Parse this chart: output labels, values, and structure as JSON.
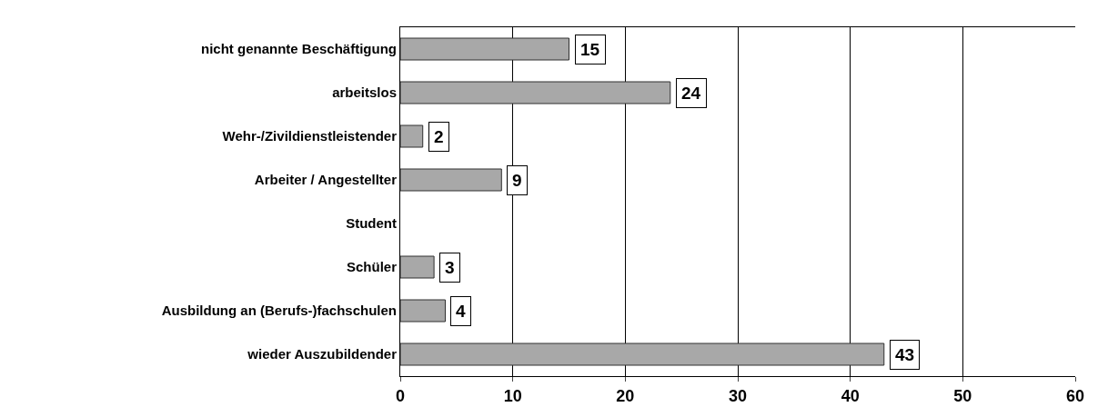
{
  "chart_data": {
    "type": "bar",
    "orientation": "horizontal",
    "categories": [
      "nicht genannte Beschäftigung",
      "arbeitslos",
      "Wehr-/Zivildienstleistender",
      "Arbeiter / Angestellter",
      "Student",
      "Schüler",
      "Ausbildung an (Berufs-)fachschulen",
      "wieder Auszubildender"
    ],
    "values": [
      15,
      24,
      2,
      9,
      null,
      3,
      4,
      43
    ],
    "value_labels": [
      "15",
      "24",
      "2",
      "9",
      null,
      "3",
      "4",
      "43"
    ],
    "color": "#a8a8a8",
    "xlim": [
      0,
      60
    ],
    "xticks": [
      0,
      10,
      20,
      30,
      40,
      50,
      60
    ],
    "grid": "x"
  }
}
